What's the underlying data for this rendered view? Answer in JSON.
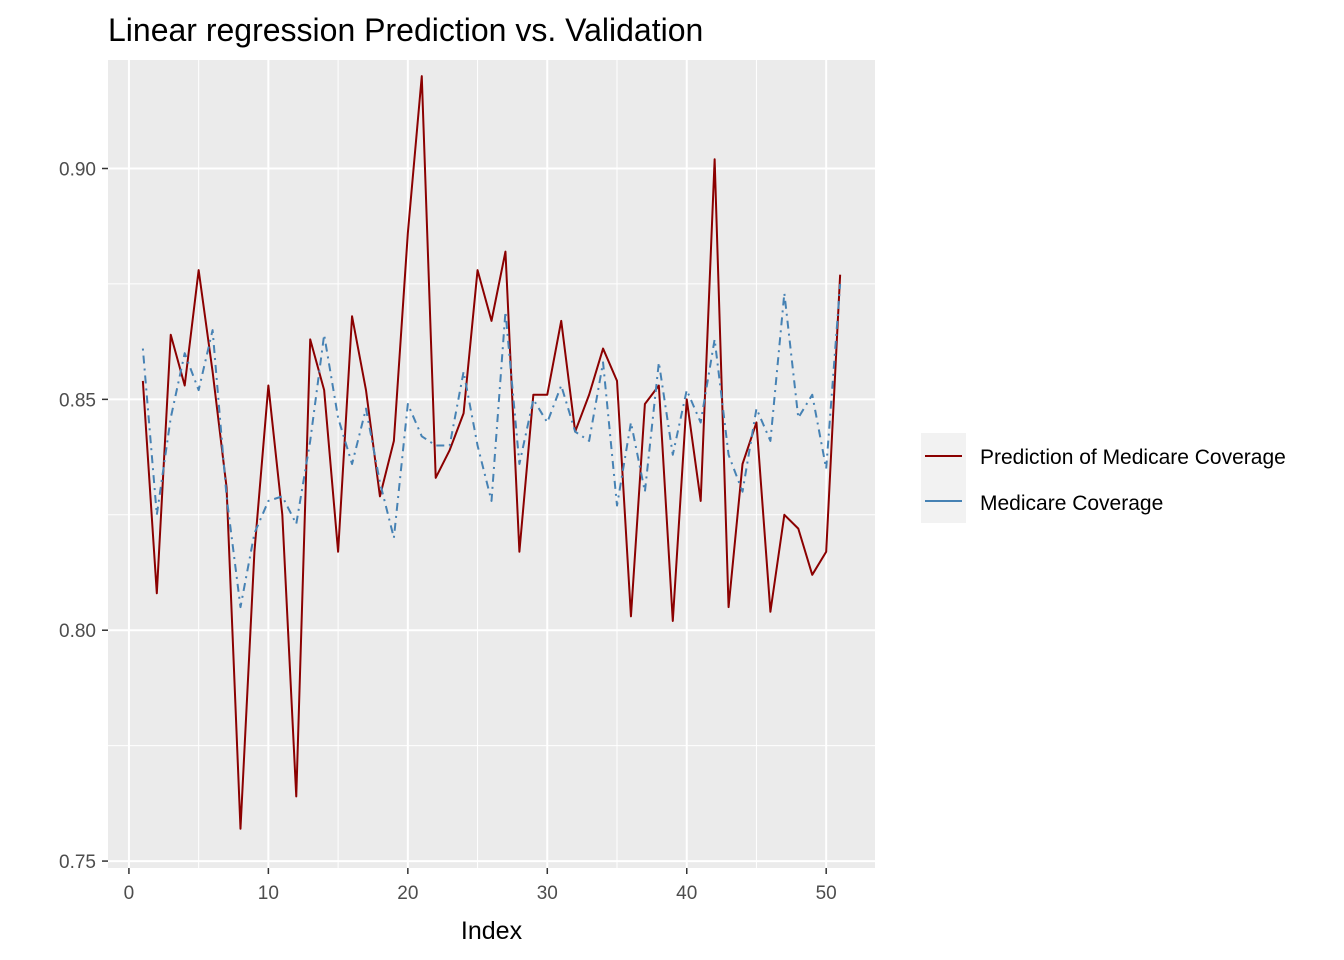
{
  "chart_data": {
    "type": "line",
    "title": "Linear regression Prediction vs. Validation",
    "xlabel": "Index",
    "ylabel": "",
    "xlim": [
      -1.5,
      53.5
    ],
    "ylim": [
      0.7485,
      0.9235
    ],
    "x_ticks": [
      0,
      10,
      20,
      30,
      40,
      50
    ],
    "x_tick_labels": [
      "0",
      "10",
      "20",
      "30",
      "40",
      "50"
    ],
    "y_ticks": [
      0.75,
      0.8,
      0.85,
      0.9
    ],
    "y_tick_labels": [
      "0.75",
      "0.80",
      "0.85",
      "0.90"
    ],
    "grid": true,
    "legend_position": "right",
    "x": [
      1,
      2,
      3,
      4,
      5,
      6,
      7,
      8,
      9,
      10,
      11,
      12,
      13,
      14,
      15,
      16,
      17,
      18,
      19,
      20,
      21,
      22,
      23,
      24,
      25,
      26,
      27,
      28,
      29,
      30,
      31,
      32,
      33,
      34,
      35,
      36,
      37,
      38,
      39,
      40,
      41,
      42,
      43,
      44,
      45,
      46,
      47,
      48,
      49,
      50,
      51
    ],
    "series": [
      {
        "name": "Prediction of Medicare Coverage",
        "color": "#8b0000",
        "dash": "solid",
        "values": [
          0.854,
          0.808,
          0.864,
          0.853,
          0.878,
          0.856,
          0.831,
          0.757,
          0.817,
          0.853,
          0.825,
          0.764,
          0.863,
          0.852,
          0.817,
          0.868,
          0.852,
          0.829,
          0.841,
          0.886,
          0.92,
          0.833,
          0.839,
          0.847,
          0.878,
          0.867,
          0.882,
          0.817,
          0.851,
          0.851,
          0.867,
          0.843,
          0.851,
          0.861,
          0.854,
          0.803,
          0.849,
          0.853,
          0.802,
          0.85,
          0.828,
          0.902,
          0.805,
          0.836,
          0.845,
          0.804,
          0.825,
          0.822,
          0.812,
          0.817,
          0.877
        ]
      },
      {
        "name": "Medicare Coverage",
        "color": "#4682b4",
        "dash": "dotdash",
        "values": [
          0.861,
          0.825,
          0.846,
          0.86,
          0.852,
          0.865,
          0.829,
          0.805,
          0.821,
          0.828,
          0.829,
          0.823,
          0.841,
          0.864,
          0.846,
          0.836,
          0.848,
          0.832,
          0.82,
          0.849,
          0.842,
          0.84,
          0.84,
          0.856,
          0.84,
          0.828,
          0.869,
          0.836,
          0.85,
          0.845,
          0.853,
          0.843,
          0.841,
          0.858,
          0.827,
          0.845,
          0.83,
          0.858,
          0.838,
          0.852,
          0.845,
          0.863,
          0.838,
          0.83,
          0.848,
          0.841,
          0.873,
          0.846,
          0.851,
          0.835,
          0.875
        ]
      }
    ]
  }
}
